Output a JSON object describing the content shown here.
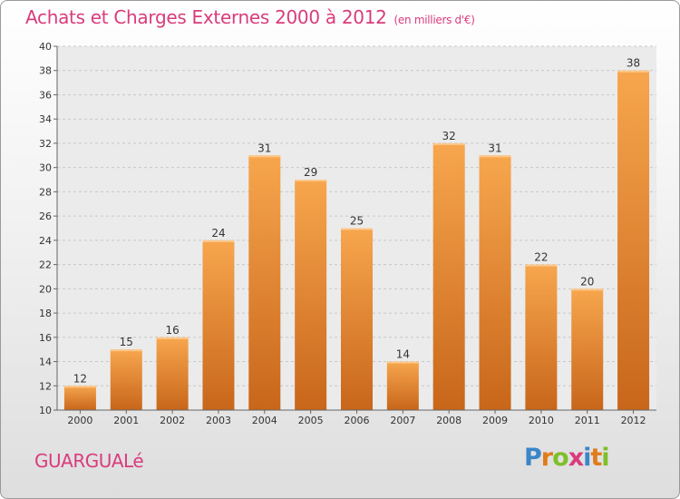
{
  "chart_data": {
    "type": "bar",
    "title": "Achats et Charges Externes 2000 à 2012",
    "subtitle": "(en milliers d'€)",
    "categories": [
      "2000",
      "2001",
      "2002",
      "2003",
      "2004",
      "2005",
      "2006",
      "2007",
      "2008",
      "2009",
      "2010",
      "2011",
      "2012"
    ],
    "values": [
      12,
      15,
      16,
      24,
      31,
      29,
      25,
      14,
      32,
      31,
      22,
      20,
      38
    ],
    "ylim": [
      10,
      40
    ],
    "ytick_step": 2,
    "grid": true,
    "xlabel": "",
    "ylabel": ""
  },
  "footer": {
    "commune": "GUARGUALé",
    "logo_letters": [
      "P",
      "r",
      "o",
      "x",
      "i",
      "t",
      "i"
    ],
    "logo_colors": [
      "#3a86c8",
      "#e07c1a",
      "#7fbf2a",
      "#d93c7c",
      "#3a86c8",
      "#e07c1a",
      "#7fbf2a"
    ]
  },
  "colors": {
    "bar_light": "#f7a64e",
    "bar_dark": "#c8661a",
    "title": "#d93c7c"
  }
}
